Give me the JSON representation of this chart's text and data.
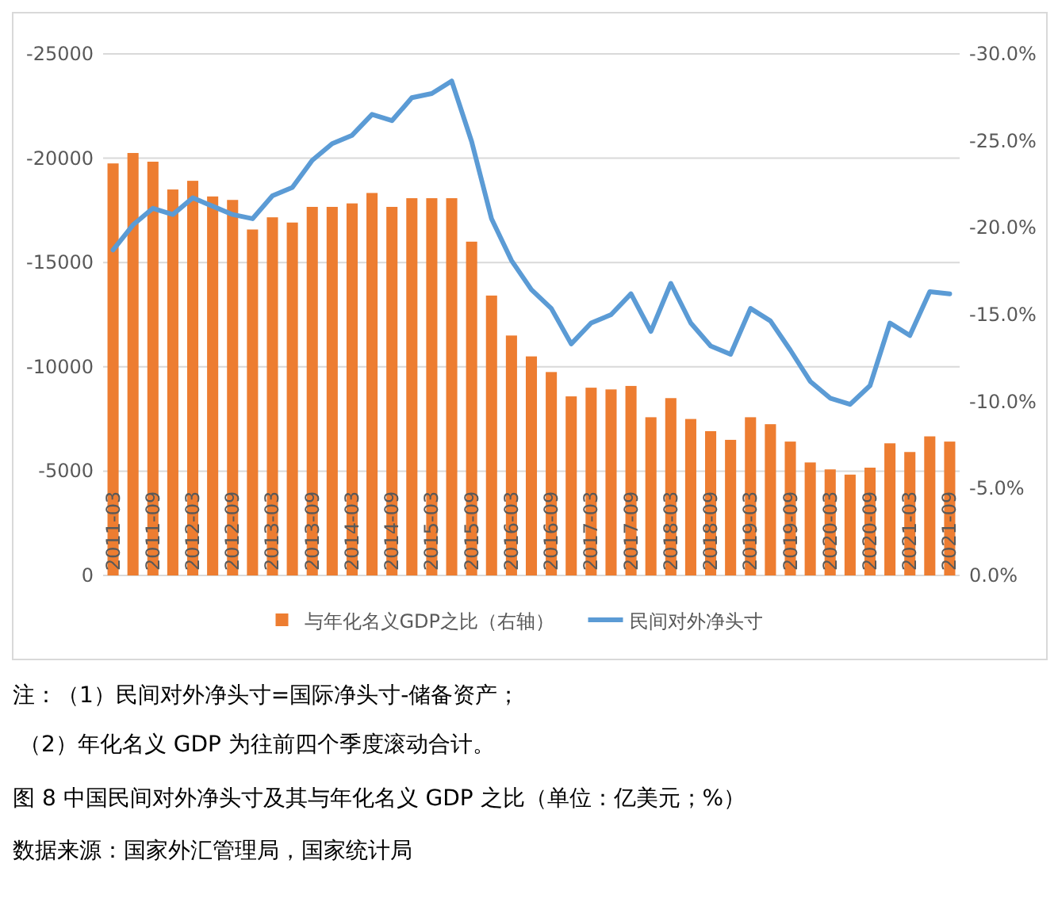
{
  "chart_data": {
    "type": "bar",
    "categories": [
      "2011-03",
      null,
      "2011-09",
      null,
      "2012-03",
      null,
      "2012-09",
      null,
      "2013-03",
      null,
      "2013-09",
      null,
      "2014-03",
      null,
      "2014-09",
      null,
      "2015-03",
      null,
      "2015-09",
      null,
      "2016-03",
      null,
      "2016-09",
      null,
      "2017-03",
      null,
      "2017-09",
      null,
      "2018-03",
      null,
      "2018-09",
      null,
      "2019-03",
      null,
      "2019-09",
      null,
      "2020-03",
      null,
      "2020-09",
      null,
      "2021-03",
      null,
      "2021-09"
    ],
    "series": [
      {
        "name": "与年化名义GDP之比（右轴）",
        "axis": "y2",
        "color": "#ed7d31",
        "values": [
          -23.7,
          -24.3,
          -23.8,
          -22.2,
          -22.7,
          -21.8,
          -21.6,
          -19.9,
          -20.6,
          -20.3,
          -21.2,
          -21.2,
          -21.4,
          -22.0,
          -21.2,
          -21.7,
          -21.7,
          -21.7,
          -19.2,
          -16.1,
          -13.8,
          -12.6,
          -11.7,
          -10.3,
          -10.8,
          -10.7,
          -10.9,
          -9.1,
          -10.2,
          -9.0,
          -8.3,
          -7.8,
          -9.1,
          -8.7,
          -7.7,
          -6.5,
          -6.1,
          -5.8,
          -6.2,
          -7.6,
          -7.1,
          -8.0,
          -7.7
        ]
      },
      {
        "name": "民间对外净头寸",
        "type": "line",
        "axis": "y",
        "color": "#5b9bd5",
        "values": [
          -15600,
          -16800,
          -17600,
          -17300,
          -18100,
          -17700,
          -17300,
          -17100,
          -18200,
          -18600,
          -19900,
          -20700,
          -21100,
          -22100,
          -21800,
          -22900,
          -23100,
          -23700,
          -20800,
          -17100,
          -15100,
          -13700,
          -12800,
          -11100,
          -12100,
          -12500,
          -13500,
          -11700,
          -14000,
          -12100,
          -11000,
          -10600,
          -12800,
          -12200,
          -10800,
          -9300,
          -8500,
          -8200,
          -9100,
          -12100,
          -11500,
          -13600,
          -13500
        ]
      }
    ],
    "ylim": [
      0,
      -25000
    ],
    "yticks": [
      -25000,
      -20000,
      -15000,
      -10000,
      -5000,
      0
    ],
    "y2lim": [
      0,
      -30
    ],
    "y2ticks": [
      {
        "value": -30,
        "label": "-30.0%"
      },
      {
        "value": -25,
        "label": "-25.0%"
      },
      {
        "value": -20,
        "label": "-20.0%"
      },
      {
        "value": -15,
        "label": "-15.0%"
      },
      {
        "value": -10,
        "label": "-10.0%"
      },
      {
        "value": -5,
        "label": "-5.0%"
      },
      {
        "value": 0,
        "label": "0.0%"
      }
    ],
    "grid": "y",
    "legend": "bottom",
    "annotations": [
      "注：（1）民间对外净头寸=国际净头寸-储备资产；",
      "（2）年化名义 GDP 为往前四个季度滚动合计。",
      "图 8 中国民间对外净头寸及其与年化名义 GDP 之比（单位：亿美元；%）",
      "数据来源：国家外汇管理局，国家统计局"
    ]
  }
}
